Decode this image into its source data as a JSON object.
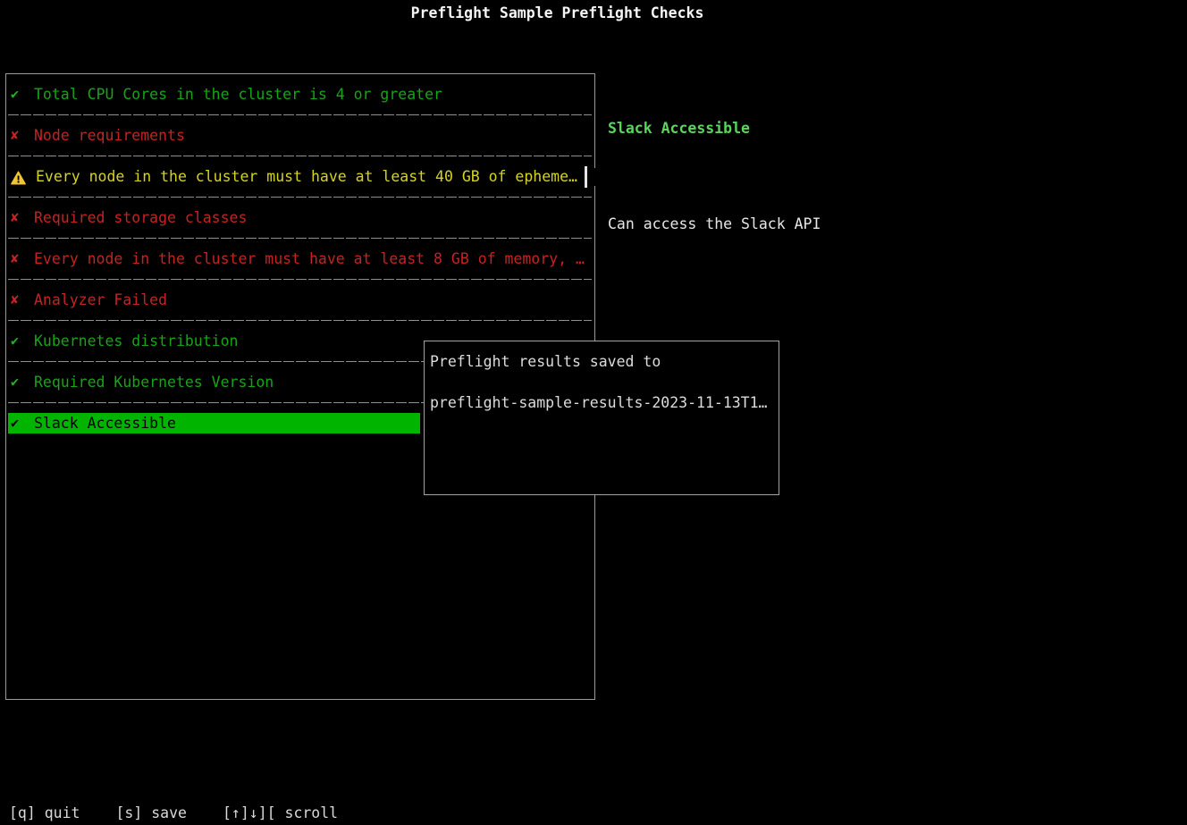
{
  "title": "Preflight Sample Preflight Checks",
  "colors": {
    "background": "#000000",
    "pass_green": "#16a516",
    "fail_red": "#c52222",
    "warn_yellow": "#d6d31f",
    "warn_triangle": "#f0c531",
    "selected_bg": "#00b400",
    "selected_text": "#000000",
    "detail_heading_green": "#59d659",
    "border_grey": "#9a9a9a",
    "text_light": "#dcdcdc"
  },
  "checks": {
    "icons": {
      "pass": "✔",
      "fail": "✘",
      "warn": "⚠"
    },
    "items": [
      {
        "status": "pass",
        "label": "Total CPU Cores in the cluster is 4 or greater"
      },
      {
        "status": "fail",
        "label": "Node requirements"
      },
      {
        "status": "warn",
        "label": "Every node in the cluster must have at least 40 GB of epheme…",
        "cursor": true
      },
      {
        "status": "fail",
        "label": "Required storage classes"
      },
      {
        "status": "fail",
        "label": "Every node in the cluster must have at least 8 GB of memory, …"
      },
      {
        "status": "fail",
        "label": "Analyzer Failed"
      },
      {
        "status": "pass",
        "label": "Kubernetes distribution"
      },
      {
        "status": "pass",
        "label": "Required Kubernetes Version"
      },
      {
        "status": "pass",
        "label": "Slack Accessible",
        "selected": true
      }
    ]
  },
  "detail": {
    "heading": "Slack Accessible",
    "description": "Can access the Slack API"
  },
  "dialog": {
    "line1": "Preflight results saved to",
    "line2": "preflight-sample-results-2023-11-13T1…"
  },
  "statusbar": {
    "hints": [
      {
        "key": "[q]",
        "label": "quit"
      },
      {
        "key": "[s]",
        "label": "save"
      },
      {
        "key": "[↑]↓][",
        "label": "scroll"
      }
    ]
  }
}
